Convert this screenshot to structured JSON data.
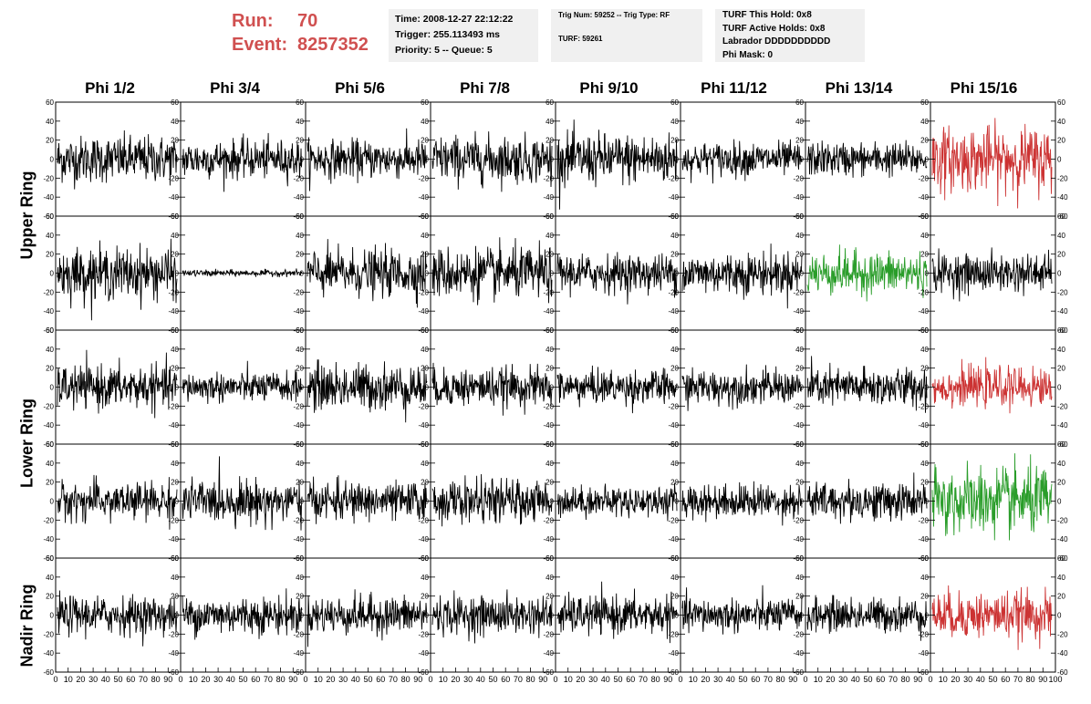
{
  "header": {
    "run_label": "Run:",
    "run_value": "70",
    "event_label": "Event:",
    "event_value": "8257352"
  },
  "time_box": {
    "time": "Time: 2008-12-27 22:12:22",
    "trigger": "Trigger: 255.113493 ms",
    "priority": "Priority: 5 -- Queue: 5"
  },
  "trig_box": {
    "trig_line": "Trig Num: 59252 -- Trig Type: RF",
    "turf_line": "TURF: 59261"
  },
  "turf_box": {
    "this_hold": "TURF This Hold: 0x8",
    "active_holds": "TURF Active Holds: 0x8",
    "labrador": "Labrador DDDDDDDDDD",
    "phi_mask": "Phi Mask: 0"
  },
  "column_titles": [
    "Phi 1/2",
    "Phi 3/4",
    "Phi 5/6",
    "Phi 7/8",
    "Phi 9/10",
    "Phi 11/12",
    "Phi 13/14",
    "Phi 15/16"
  ],
  "ring_labels": [
    "Upper Ring",
    "Lower Ring",
    "Nadir Ring"
  ],
  "colors": {
    "normal": "#000000",
    "triggered_red": "#cc3333",
    "triggered_green": "#2a9d2a",
    "run_text": "#d05050"
  },
  "chart_data": {
    "type": "line",
    "grid_layout": "5 rows x 8 columns of waveform panels",
    "ylim": [
      -60,
      60
    ],
    "y_ticks": [
      -60,
      -40,
      -20,
      0,
      20,
      40,
      60
    ],
    "xlim": [
      0,
      100
    ],
    "x_tick_labels": [
      "0",
      "10",
      "20",
      "30",
      "40",
      "50",
      "60",
      "70",
      "80",
      "90",
      "100"
    ],
    "samples_per_trace": 260,
    "grid": false,
    "panel_rows": [
      {
        "name": "row1",
        "amplitudes": [
          22,
          18,
          18,
          22,
          24,
          16,
          16,
          30
        ],
        "colors": [
          "normal",
          "normal",
          "normal",
          "normal",
          "normal",
          "normal",
          "normal",
          "triggered_red"
        ]
      },
      {
        "name": "row2",
        "amplitudes": [
          24,
          3,
          22,
          24,
          18,
          20,
          20,
          18
        ],
        "colors": [
          "normal",
          "normal",
          "normal",
          "normal",
          "normal",
          "normal",
          "triggered_green",
          "normal"
        ]
      },
      {
        "name": "row3",
        "amplitudes": [
          20,
          14,
          22,
          18,
          16,
          16,
          18,
          18
        ],
        "colors": [
          "normal",
          "normal",
          "normal",
          "normal",
          "normal",
          "normal",
          "normal",
          "triggered_red"
        ]
      },
      {
        "name": "row4",
        "amplitudes": [
          18,
          20,
          18,
          20,
          14,
          16,
          18,
          32
        ],
        "colors": [
          "normal",
          "normal",
          "normal",
          "normal",
          "normal",
          "normal",
          "normal",
          "triggered_green"
        ]
      },
      {
        "name": "row5",
        "amplitudes": [
          18,
          18,
          18,
          18,
          18,
          16,
          16,
          22
        ],
        "colors": [
          "normal",
          "normal",
          "normal",
          "normal",
          "normal",
          "normal",
          "normal",
          "triggered_red"
        ]
      }
    ]
  }
}
